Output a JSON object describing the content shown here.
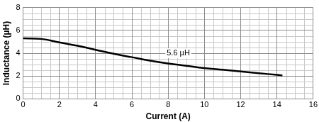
{
  "chart_data": {
    "type": "line",
    "x_label": "Current (A)",
    "y_label": "Inductance (µH)",
    "annotation": "5.6 µH",
    "x": [
      0,
      1,
      2,
      3,
      4,
      5,
      6,
      7,
      8,
      9,
      10,
      11,
      12,
      13,
      14,
      14.3
    ],
    "values": [
      5.3,
      5.25,
      4.95,
      4.65,
      4.3,
      3.95,
      3.65,
      3.35,
      3.1,
      2.9,
      2.7,
      2.55,
      2.4,
      2.25,
      2.1,
      2.05
    ],
    "color": "#000000",
    "xlim": [
      0,
      16
    ],
    "xticks": [
      0,
      2,
      4,
      6,
      8,
      10,
      12,
      14,
      16
    ],
    "ylim": [
      0,
      8
    ],
    "yticks": [
      0,
      2,
      4,
      6,
      8
    ],
    "grid": true
  }
}
